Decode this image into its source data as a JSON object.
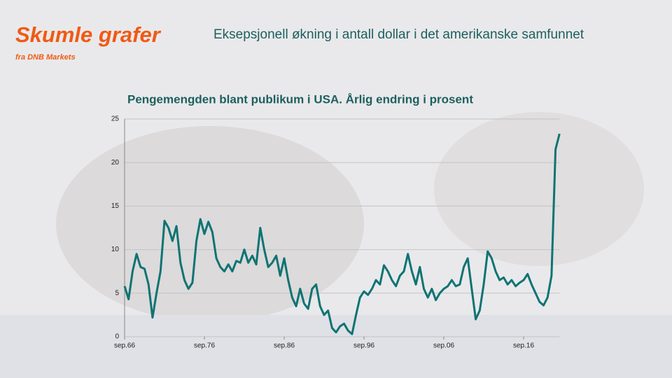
{
  "slide": {
    "brand": "Skumle grafer",
    "brand_sub": "fra DNB Markets",
    "headline": "Eksepsjonell økning i antall dollar i det amerikanske samfunnet"
  },
  "chart_data": {
    "type": "line",
    "title": "Pengemengden blant publikum i USA. Årlig endring i prosent",
    "categories": [
      "sep.66",
      null,
      null,
      null,
      null,
      null,
      null,
      null,
      null,
      null,
      null,
      null,
      null,
      null,
      null,
      null,
      null,
      null,
      null,
      null,
      "sep.76",
      null,
      null,
      null,
      null,
      null,
      null,
      null,
      null,
      null,
      null,
      null,
      null,
      null,
      null,
      null,
      null,
      null,
      null,
      null,
      "sep.86",
      null,
      null,
      null,
      null,
      null,
      null,
      null,
      null,
      null,
      null,
      null,
      null,
      null,
      null,
      null,
      null,
      null,
      null,
      null,
      "sep.96",
      null,
      null,
      null,
      null,
      null,
      null,
      null,
      null,
      null,
      null,
      null,
      null,
      null,
      null,
      null,
      null,
      null,
      null,
      null,
      "sep.06",
      null,
      null,
      null,
      null,
      null,
      null,
      null,
      null,
      null,
      null,
      null,
      null,
      null,
      null,
      null,
      null,
      null,
      null,
      null,
      "sep.16",
      null,
      null,
      null,
      null,
      null,
      null,
      null,
      null,
      null
    ],
    "series": [
      {
        "color": "#0f7373",
        "values": [
          5.8,
          4.3,
          7.5,
          9.5,
          8,
          7.8,
          6,
          2.2,
          5,
          7.5,
          13.3,
          12.5,
          11,
          12.7,
          8.5,
          6.5,
          5.5,
          6.2,
          11,
          13.5,
          11.8,
          13.2,
          12,
          9,
          8,
          7.5,
          8.3,
          7.5,
          8.7,
          8.5,
          10,
          8.5,
          9.3,
          8.3,
          12.5,
          10,
          8,
          8.5,
          9.3,
          7,
          9,
          6.5,
          4.5,
          3.5,
          5.5,
          3.8,
          3.2,
          5.5,
          6,
          3.5,
          2.5,
          3,
          1,
          0.5,
          1.2,
          1.5,
          0.7,
          0.3,
          2.5,
          4.5,
          5.2,
          4.8,
          5.5,
          6.5,
          6,
          8.2,
          7.5,
          6.5,
          5.8,
          7,
          7.5,
          9.5,
          7.5,
          6,
          8,
          5.5,
          4.5,
          5.5,
          4.2,
          5,
          5.5,
          5.8,
          6.5,
          5.8,
          6,
          8,
          9,
          5.5,
          2,
          3,
          6,
          9.8,
          9,
          7.5,
          6.5,
          6.8,
          6,
          6.5,
          5.8,
          6.2,
          6.5,
          7.2,
          6,
          5,
          4,
          3.6,
          4.5,
          7,
          21.5,
          23.3
        ]
      }
    ],
    "ylim": [
      0,
      25
    ],
    "yticks": [
      0,
      5,
      10,
      15,
      20,
      25
    ],
    "grid": true
  }
}
